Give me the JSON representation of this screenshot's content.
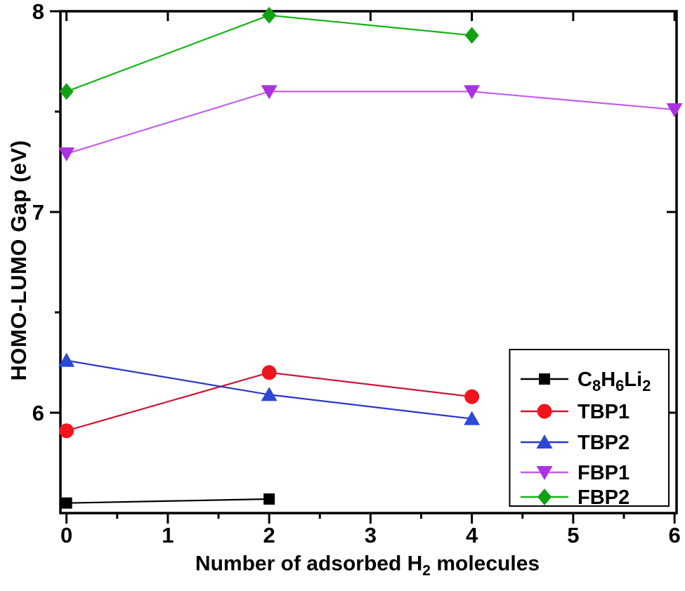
{
  "figure": {
    "background": "#ffffff",
    "frame_color": "#000000",
    "text_color": "#000000"
  },
  "chart_data": {
    "type": "line",
    "title": "",
    "ylabel": "HOMO-LUMO Gap (eV)",
    "xlabel": {
      "prefix": "Number of adsorbed H",
      "sub": "2",
      "suffix": " molecules"
    },
    "xlim": [
      -0.06,
      6.02
    ],
    "ylim": [
      5.5,
      8.0
    ],
    "x_major_ticks": [
      0,
      1,
      2,
      3,
      4,
      5,
      6
    ],
    "x_tick_labels": [
      "0",
      "1",
      "2",
      "3",
      "4",
      "5",
      "6"
    ],
    "x_minor_ticks": [
      0.5,
      1.5,
      2.5,
      3.5,
      4.5,
      5.5
    ],
    "y_major_ticks": [
      6,
      7,
      8
    ],
    "y_tick_labels": [
      "6",
      "7",
      "8"
    ],
    "y_minor_ticks": [
      6.5,
      7.5
    ],
    "grid": false,
    "legend_position": "bottom-right",
    "series": [
      {
        "name": "C8H6Li2",
        "label_parts": [
          {
            "t": "C"
          },
          {
            "t": "8",
            "sub": true
          },
          {
            "t": "H"
          },
          {
            "t": "6",
            "sub": true
          },
          {
            "t": "Li"
          },
          {
            "t": "2",
            "sub": true
          }
        ],
        "marker": "square",
        "marker_color": "#000000",
        "line_color": "#000000",
        "points": [
          [
            0,
            5.55
          ],
          [
            2,
            5.57
          ]
        ]
      },
      {
        "name": "TBP1",
        "label_parts": [
          {
            "t": "TBP1"
          }
        ],
        "marker": "circle",
        "marker_color": "#f0141e",
        "line_color": "#c81737",
        "points": [
          [
            0,
            5.91
          ],
          [
            2,
            6.2
          ],
          [
            4,
            6.08
          ]
        ]
      },
      {
        "name": "TBP2",
        "label_parts": [
          {
            "t": "TBP2"
          }
        ],
        "marker": "triangle-up",
        "marker_color": "#2b49d6",
        "line_color": "#2b35c8",
        "points": [
          [
            0,
            6.26
          ],
          [
            2,
            6.09
          ],
          [
            4,
            5.97
          ]
        ]
      },
      {
        "name": "FBP1",
        "label_parts": [
          {
            "t": "FBP1"
          }
        ],
        "marker": "triangle-down",
        "marker_color": "#ab32e0",
        "line_color": "#c45fe8",
        "points": [
          [
            0,
            7.29
          ],
          [
            2,
            7.6
          ],
          [
            4,
            7.6
          ],
          [
            6,
            7.51
          ]
        ]
      },
      {
        "name": "FBP2",
        "label_parts": [
          {
            "t": "FBP2"
          }
        ],
        "marker": "diamond",
        "marker_color": "#12a112",
        "line_color": "#14b514",
        "points": [
          [
            0,
            7.6
          ],
          [
            2,
            7.98
          ],
          [
            4,
            7.88
          ]
        ]
      }
    ]
  }
}
